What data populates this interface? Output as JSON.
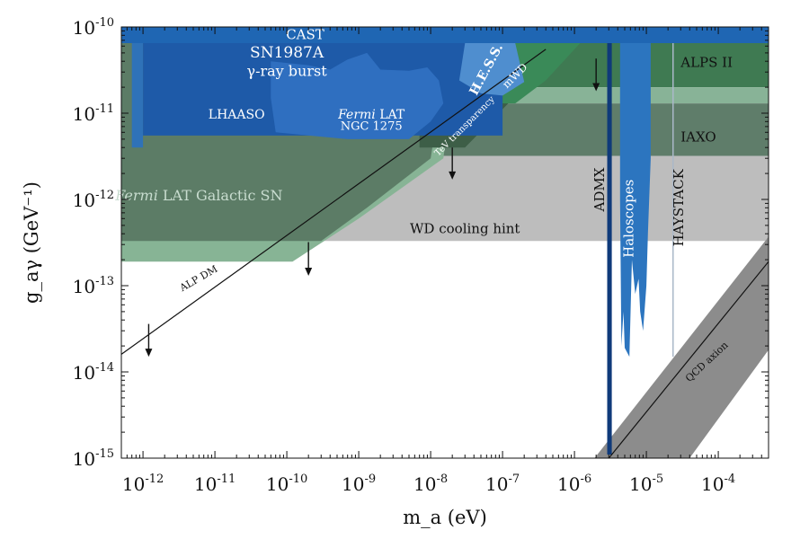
{
  "chart_data": {
    "type": "area",
    "title": "",
    "xlabel": "m_a (eV)",
    "ylabel": "g_aγ (GeV⁻¹)",
    "x_scale": "log",
    "y_scale": "log",
    "xlim": [
      5e-13,
      0.0005
    ],
    "ylim": [
      1e-15,
      1e-10
    ],
    "x_ticks": [
      {
        "value": 1e-12,
        "base": "10",
        "exp": "-12"
      },
      {
        "value": 1e-11,
        "base": "10",
        "exp": "-11"
      },
      {
        "value": 1e-10,
        "base": "10",
        "exp": "-10"
      },
      {
        "value": 1e-09,
        "base": "10",
        "exp": "-9"
      },
      {
        "value": 1e-08,
        "base": "10",
        "exp": "-8"
      },
      {
        "value": 1e-07,
        "base": "10",
        "exp": "-7"
      },
      {
        "value": 1e-06,
        "base": "10",
        "exp": "-6"
      },
      {
        "value": 1e-05,
        "base": "10",
        "exp": "-5"
      },
      {
        "value": 0.0001,
        "base": "10",
        "exp": "-4"
      }
    ],
    "y_ticks": [
      {
        "value": 1e-10,
        "base": "10",
        "exp": "-10"
      },
      {
        "value": 1e-11,
        "base": "10",
        "exp": "-11"
      },
      {
        "value": 1e-12,
        "base": "10",
        "exp": "-12"
      },
      {
        "value": 1e-13,
        "base": "10",
        "exp": "-13"
      },
      {
        "value": 1e-14,
        "base": "10",
        "exp": "-14"
      },
      {
        "value": 1e-15,
        "base": "10",
        "exp": "-15"
      }
    ],
    "regions": [
      {
        "name": "ALPS II",
        "label": "ALPS II",
        "color": "#3f7a52",
        "opacity": 1,
        "points": [
          [
            5e-13,
            6.5e-11
          ],
          [
            0.0005,
            6.5e-11
          ],
          [
            0.0005,
            2e-11
          ],
          [
            5e-13,
            2e-11
          ]
        ]
      },
      {
        "name": "ALPS II light",
        "label": "",
        "color": "#88b397",
        "opacity": 1,
        "points": [
          [
            5e-13,
            2e-11
          ],
          [
            0.0005,
            2e-11
          ],
          [
            0.0005,
            1.3e-11
          ],
          [
            5e-13,
            1.3e-11
          ]
        ]
      },
      {
        "name": "IAXO",
        "label": "IAXO",
        "color": "#5f7d6a",
        "opacity": 1,
        "points": [
          [
            5e-13,
            1.3e-11
          ],
          [
            0.0005,
            1.3e-11
          ],
          [
            0.0005,
            3.2e-12
          ],
          [
            5e-13,
            3.2e-12
          ]
        ]
      },
      {
        "name": "WD cooling hint",
        "label": "WD cooling hint",
        "color": "#bdbdbd",
        "opacity": 1,
        "points": [
          [
            5e-13,
            3.2e-12
          ],
          [
            0.0005,
            3.2e-12
          ],
          [
            0.0005,
            3.3e-13
          ],
          [
            5e-13,
            3.3e-13
          ]
        ]
      },
      {
        "name": "Fermi LAT Galactic SN",
        "label": "Fermi LAT Galactic SN",
        "color": "#87b495",
        "opacity": 1,
        "points": [
          [
            5e-13,
            6.5e-11
          ],
          [
            2.5e-08,
            6.5e-11
          ],
          [
            1.5e-08,
            3e-12
          ],
          [
            1e-09,
            6e-13
          ],
          [
            1.2e-10,
            1.9e-13
          ],
          [
            5e-13,
            1.9e-13
          ]
        ]
      },
      {
        "name": "Fermi LAT Galactic SN dark",
        "label": "",
        "color": "#5c7c66",
        "opacity": 1,
        "points": [
          [
            5e-13,
            6.5e-11
          ],
          [
            1.8e-08,
            6.5e-11
          ],
          [
            1e-08,
            3e-12
          ],
          [
            1.3e-09,
            8e-13
          ],
          [
            3e-10,
            3.3e-13
          ],
          [
            5e-13,
            3.3e-13
          ]
        ]
      },
      {
        "name": "TeV transparency",
        "label": "TeV transparency",
        "color": "#3d5e47",
        "opacity": 1,
        "points": [
          [
            7e-09,
            6.5e-11
          ],
          [
            1e-07,
            6.5e-11
          ],
          [
            1.2e-07,
            1.3e-11
          ],
          [
            3e-08,
            4e-12
          ],
          [
            7e-09,
            4e-12
          ]
        ]
      },
      {
        "name": "mWD",
        "label": "mWD",
        "color": "#3a8a58",
        "opacity": 1,
        "points": [
          [
            1e-07,
            6.5e-11
          ],
          [
            1.2e-06,
            6.5e-11
          ],
          [
            4e-07,
            2.4e-11
          ],
          [
            1.5e-07,
            1.3e-11
          ],
          [
            1e-07,
            1.3e-11
          ]
        ]
      },
      {
        "name": "LHAASO",
        "label": "LHAASO",
        "color": "#2f72b8",
        "opacity": 1,
        "points": [
          [
            7e-13,
            6.5e-11
          ],
          [
            1e-12,
            6.5e-11
          ],
          [
            1e-12,
            4e-12
          ],
          [
            7e-13,
            4e-12
          ]
        ]
      },
      {
        "name": "SN1987A gamma-ray burst",
        "label": "SN1987A",
        "color": "#1e5aa8",
        "opacity": 1,
        "points": [
          [
            1e-12,
            6.5e-11
          ],
          [
            1e-07,
            6.5e-11
          ],
          [
            1e-07,
            5.5e-12
          ],
          [
            1e-12,
            5.5e-12
          ]
        ]
      },
      {
        "name": "Fermi LAT NGC 1275",
        "label": "Fermi LAT",
        "color": "#2f6fc0",
        "opacity": 1,
        "points": [
          [
            6e-11,
            4e-11
          ],
          [
            2e-10,
            3.6e-11
          ],
          [
            4e-10,
            3.2e-11
          ],
          [
            7e-10,
            4.2e-11
          ],
          [
            1.3e-09,
            5e-11
          ],
          [
            2e-09,
            3.2e-11
          ],
          [
            5e-09,
            3.1e-11
          ],
          [
            9e-09,
            3.4e-11
          ],
          [
            1.3e-08,
            2.4e-11
          ],
          [
            1.5e-08,
            1.3e-11
          ],
          [
            1e-08,
            8e-12
          ],
          [
            5e-09,
            5e-12
          ],
          [
            7e-10,
            5e-12
          ],
          [
            7e-11,
            6e-12
          ],
          [
            6e-11,
            1.5e-11
          ]
        ]
      },
      {
        "name": "H.E.S.S.",
        "label": "H.E.S.S.",
        "color": "#4f8ecf",
        "opacity": 1,
        "points": [
          [
            3e-08,
            6.5e-11
          ],
          [
            1.5e-07,
            6.5e-11
          ],
          [
            2e-07,
            2.3e-11
          ],
          [
            1e-07,
            1.6e-11
          ],
          [
            5e-08,
            1.7e-11
          ],
          [
            2.5e-08,
            2.4e-11
          ]
        ]
      },
      {
        "name": "CAST",
        "label": "CAST",
        "color": "#1f66b3",
        "opacity": 1,
        "points": [
          [
            5e-13,
            1e-10
          ],
          [
            0.0005,
            1e-10
          ],
          [
            0.0005,
            6.5e-11
          ],
          [
            5e-13,
            6.5e-11
          ]
        ]
      },
      {
        "name": "QCD axion",
        "label": "QCD axion",
        "color": "#8c8c8c",
        "opacity": 1,
        "points": [
          [
            1.9e-06,
            1e-15
          ],
          [
            0.0005,
            3.7e-13
          ],
          [
            0.0005,
            1.8e-14
          ],
          [
            4e-05,
            1e-15
          ]
        ]
      },
      {
        "name": "Haloscopes",
        "label": "Haloscopes",
        "color": "#2c75bf",
        "opacity": 1,
        "points": [
          [
            4.3e-06,
            6.5e-11
          ],
          [
            1.15e-05,
            6.5e-11
          ],
          [
            1.15e-05,
            3e-12
          ],
          [
            1.05e-05,
            4e-13
          ],
          [
            1e-05,
            1e-13
          ],
          [
            9e-06,
            3e-14
          ],
          [
            8.2e-06,
            5e-14
          ],
          [
            7.8e-06,
            1.2e-13
          ],
          [
            7e-06,
            8e-14
          ],
          [
            6.3e-06,
            2e-13
          ],
          [
            5.8e-06,
            1.5e-14
          ],
          [
            5e-06,
            1.9e-14
          ],
          [
            4.8e-06,
            5e-14
          ],
          [
            4.5e-06,
            2e-14
          ],
          [
            4.3e-06,
            1e-12
          ]
        ]
      },
      {
        "name": "HAYSTACK",
        "label": "HAYSTACK",
        "color": "#aab8c8",
        "opacity": 1,
        "points": [
          [
            2.3e-05,
            6.5e-11
          ],
          [
            2.4e-05,
            6.5e-11
          ],
          [
            2.4e-05,
            1.5e-14
          ],
          [
            2.3e-05,
            1.5e-14
          ]
        ]
      },
      {
        "name": "ADMX",
        "label": "ADMX",
        "color": "#0f3a7a",
        "opacity": 1,
        "points": [
          [
            2.85e-06,
            6.5e-11
          ],
          [
            3.3e-06,
            6.5e-11
          ],
          [
            3.3e-06,
            1.1e-15
          ],
          [
            2.85e-06,
            1.1e-15
          ]
        ]
      }
    ],
    "lines": [
      {
        "name": "ALP DM",
        "label": "ALP DM",
        "color": "#111111",
        "points": [
          [
            5e-13,
            1.6e-14
          ],
          [
            4e-07,
            5.5e-11
          ]
        ]
      },
      {
        "name": "QCD axion center line",
        "label": "",
        "color": "#111111",
        "points": [
          [
            3e-06,
            1e-15
          ],
          [
            0.0005,
            1.9e-13
          ]
        ]
      }
    ],
    "arrows": [
      {
        "x": 1.2e-12,
        "y_from": 3.6e-14,
        "y_to": 1.5e-14
      },
      {
        "x": 2e-10,
        "y_from": 3.2e-13,
        "y_to": 1.3e-13
      },
      {
        "x": 2e-08,
        "y_from": 4e-12,
        "y_to": 1.7e-12
      },
      {
        "x": 2e-06,
        "y_from": 4.3e-11,
        "y_to": 1.8e-11
      }
    ],
    "region_labels": [
      {
        "text": "CAST",
        "x": 1.8e-10,
        "y": 8e-11,
        "color": "#ffffff",
        "size": 15,
        "rotate": 0
      },
      {
        "text": "SN1987A",
        "x": 1e-10,
        "y": 4.9e-11,
        "color": "#ffffff",
        "size": 17,
        "rotate": 0
      },
      {
        "text": "γ-ray burst",
        "x": 1e-10,
        "y": 3e-11,
        "color": "#ffffff",
        "size": 16,
        "rotate": 0
      },
      {
        "text": "LHAASO",
        "x": 2e-11,
        "y": 9.5e-12,
        "color": "#ffffff",
        "size": 14,
        "rotate": 0
      },
      {
        "text": "Fermi LAT",
        "x": 1.5e-09,
        "y": 9.5e-12,
        "color": "#ffffff",
        "size": 14,
        "rotate": 0,
        "italic_word": "Fermi"
      },
      {
        "text": "NGC 1275",
        "x": 1.5e-09,
        "y": 7e-12,
        "color": "#ffffff",
        "size": 13,
        "rotate": 0
      },
      {
        "text": "H.E.S.S.",
        "x": 6e-08,
        "y": 3.2e-11,
        "color": "#ffffff",
        "size": 14,
        "rotate": -62,
        "bold": true
      },
      {
        "text": "mWD",
        "x": 1.5e-07,
        "y": 2.7e-11,
        "color": "#ffffff",
        "size": 12,
        "rotate": -45
      },
      {
        "text": "TeV transparency",
        "x": 3e-08,
        "y": 7e-12,
        "color": "#ffffff",
        "size": 10,
        "rotate": -45
      },
      {
        "text": "ALPS II",
        "x": 3e-05,
        "y": 3.8e-11,
        "color": "#111111",
        "size": 15,
        "rotate": 0,
        "anchor": "start"
      },
      {
        "text": "IAXO",
        "x": 3e-05,
        "y": 5.2e-12,
        "color": "#111111",
        "size": 15,
        "rotate": 0,
        "anchor": "start"
      },
      {
        "text": "Fermi LAT Galactic SN",
        "x": 6e-12,
        "y": 1.1e-12,
        "color": "#c8dccf",
        "size": 16,
        "rotate": 0,
        "italic_word": "Fermi"
      },
      {
        "text": "WD cooling hint",
        "x": 3e-08,
        "y": 4.5e-13,
        "color": "#111111",
        "size": 15,
        "rotate": 0
      },
      {
        "text": "ADMX",
        "x": 2.3e-06,
        "y": 1.3e-12,
        "color": "#111111",
        "size": 15,
        "rotate": -90
      },
      {
        "text": "Haloscopes",
        "x": 5.9e-06,
        "y": 6e-13,
        "color": "#ffffff",
        "size": 15,
        "rotate": -90
      },
      {
        "text": "HAYSTACK",
        "x": 2.9e-05,
        "y": 8e-13,
        "color": "#111111",
        "size": 15,
        "rotate": -90
      },
      {
        "text": "ALP DM",
        "x": 6e-12,
        "y": 1.2e-13,
        "color": "#111111",
        "size": 11,
        "rotate": -30
      },
      {
        "text": "QCD axion",
        "x": 7e-05,
        "y": 1.3e-14,
        "color": "#111111",
        "size": 11,
        "rotate": -43
      }
    ],
    "grid": false,
    "legend": "none"
  }
}
